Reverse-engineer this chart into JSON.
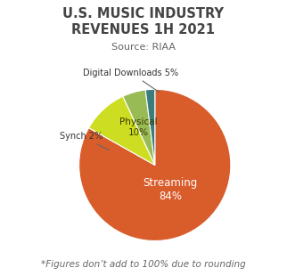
{
  "title": "U.S. MUSIC INDUSTRY\nREVENUES 1H 2021",
  "subtitle": "Source: RIAA",
  "footnote": "*Figures don’t add to 100% due to rounding",
  "slices": [
    {
      "label": "Streaming",
      "value": 84,
      "color": "#D95C2B",
      "text_color": "#ffffff"
    },
    {
      "label": "Physical\n10%",
      "value": 10,
      "color": "#CCDD22",
      "text_color": "#555500"
    },
    {
      "label": "Digital Downloads 5%",
      "value": 5,
      "color": "#99BB55",
      "text_color": "#000000"
    },
    {
      "label": "Synch 2%",
      "value": 2,
      "color": "#3A7D7D",
      "text_color": "#000000"
    }
  ],
  "figsize": [
    3.22,
    3.1
  ],
  "dpi": 100,
  "bg_color": "#ffffff",
  "title_fontsize": 10.5,
  "subtitle_fontsize": 8,
  "footnote_fontsize": 7.5,
  "startangle": 90
}
